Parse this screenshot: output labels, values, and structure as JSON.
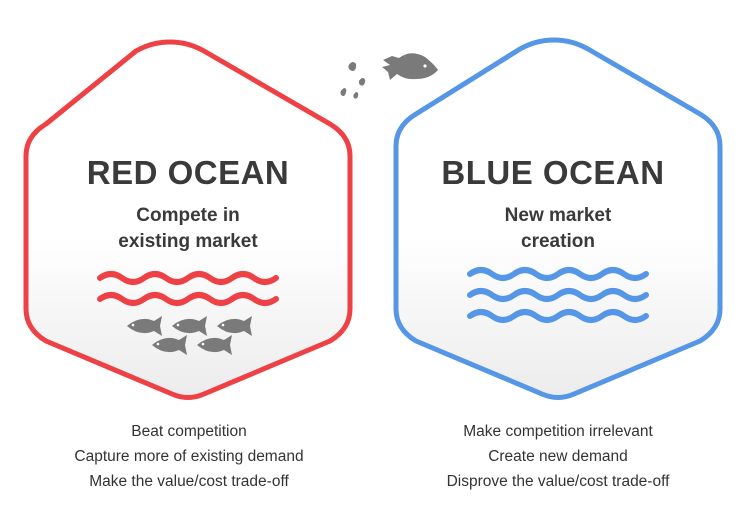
{
  "red": {
    "title": "RED OCEAN",
    "subtitle_line1": "Compete in",
    "subtitle_line2": "existing market",
    "points": [
      "Beat competition",
      "Capture more of existing demand",
      "Make the value/cost trade-off"
    ],
    "color": "#ee4146"
  },
  "blue": {
    "title": "BLUE OCEAN",
    "subtitle_line1": "New market",
    "subtitle_line2": "creation",
    "points": [
      "Make competition irrelevant",
      "Create new demand",
      "Disprove the value/cost trade-off"
    ],
    "color": "#5596e6"
  },
  "icons": {
    "fish": "fish-icon",
    "waves": "waves-icon",
    "droplets": "droplet-icon"
  },
  "colors": {
    "fish": "#7a7a7a",
    "text": "#3a3a3a"
  }
}
